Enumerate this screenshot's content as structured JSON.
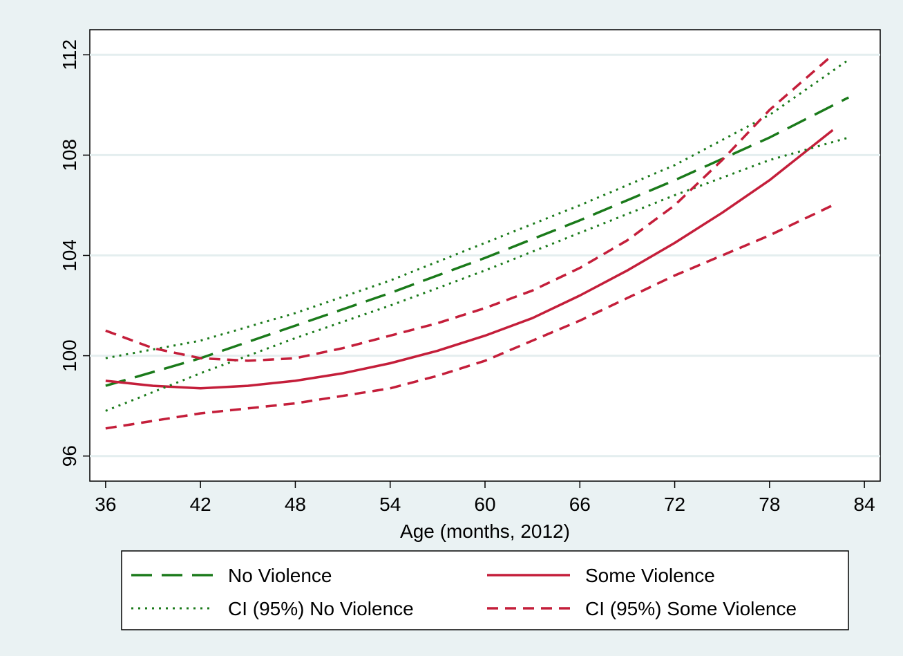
{
  "chart_data": {
    "type": "line",
    "title": "",
    "xlabel": "Age (months, 2012)",
    "ylabel": "",
    "xlim": [
      35,
      85
    ],
    "ylim": [
      95,
      113
    ],
    "xticks": [
      36,
      42,
      48,
      54,
      60,
      66,
      72,
      78,
      84
    ],
    "yticks": [
      96,
      100,
      104,
      108,
      112
    ],
    "grid": "horizontal",
    "legend_position": "bottom",
    "series": [
      {
        "name": "No Violence",
        "style": "long-dash",
        "color": "#1a7a1a",
        "x": [
          36,
          42,
          48,
          54,
          60,
          66,
          72,
          78,
          83
        ],
        "y": [
          98.8,
          99.9,
          101.2,
          102.5,
          103.9,
          105.4,
          107.0,
          108.7,
          110.3
        ]
      },
      {
        "name": "Some Violence",
        "style": "solid",
        "color": "#c41e3a",
        "x": [
          36,
          39,
          42,
          45,
          48,
          51,
          54,
          57,
          60,
          63,
          66,
          69,
          72,
          75,
          78,
          82
        ],
        "y": [
          99.0,
          98.8,
          98.7,
          98.8,
          99.0,
          99.3,
          99.7,
          100.2,
          100.8,
          101.5,
          102.4,
          103.4,
          104.5,
          105.7,
          107.0,
          109.0
        ]
      },
      {
        "name": "CI (95%) No Violence",
        "style": "dotted",
        "color": "#1a7a1a",
        "bands": [
          {
            "x": [
              36,
              42,
              48,
              54,
              60,
              66,
              72,
              78,
              83
            ],
            "y": [
              99.9,
              100.6,
              101.7,
              103.0,
              104.5,
              106.0,
              107.6,
              109.6,
              111.8
            ]
          },
          {
            "x": [
              36,
              42,
              48,
              54,
              60,
              66,
              72,
              78,
              83
            ],
            "y": [
              97.8,
              99.3,
              100.7,
              102.0,
              103.4,
              104.9,
              106.4,
              107.8,
              108.7
            ]
          }
        ]
      },
      {
        "name": "CI (95%) Some Violence",
        "style": "dashed",
        "color": "#c41e3a",
        "bands": [
          {
            "x": [
              36,
              39,
              42,
              45,
              48,
              51,
              54,
              57,
              60,
              63,
              66,
              69,
              72,
              75,
              78,
              82
            ],
            "y": [
              101.0,
              100.3,
              99.9,
              99.8,
              99.9,
              100.3,
              100.8,
              101.3,
              101.9,
              102.6,
              103.5,
              104.6,
              106.0,
              107.8,
              109.8,
              112.0
            ]
          },
          {
            "x": [
              36,
              39,
              42,
              45,
              48,
              51,
              54,
              57,
              60,
              63,
              66,
              69,
              72,
              75,
              78,
              82
            ],
            "y": [
              97.1,
              97.4,
              97.7,
              97.9,
              98.1,
              98.4,
              98.7,
              99.2,
              99.8,
              100.6,
              101.4,
              102.3,
              103.2,
              104.0,
              104.8,
              106.0
            ]
          }
        ]
      }
    ]
  }
}
